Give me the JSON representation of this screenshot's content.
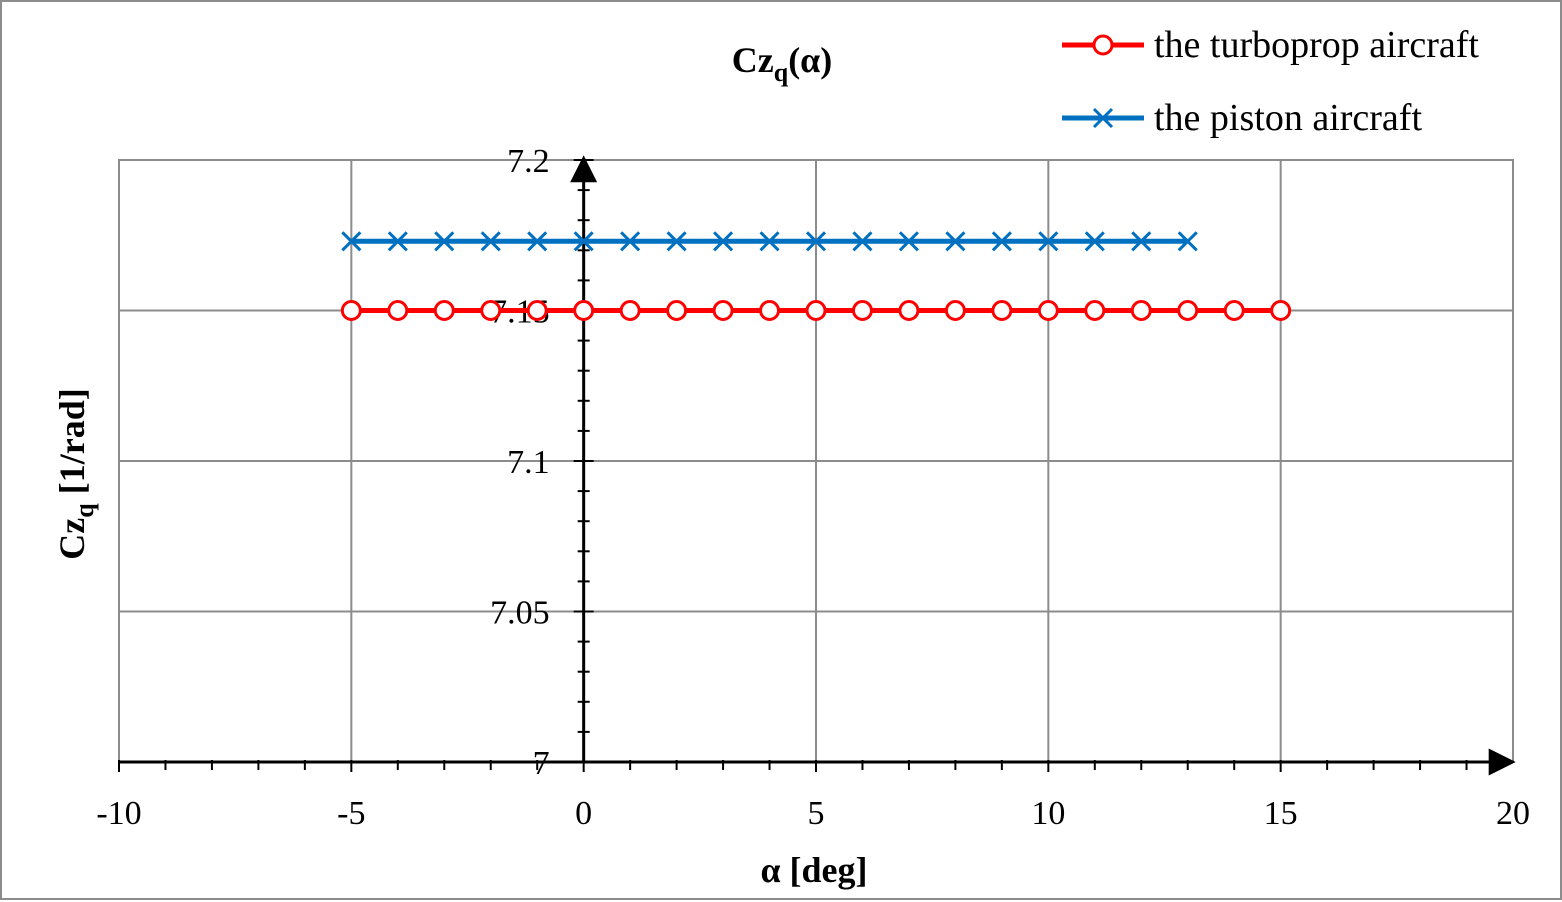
{
  "chart_data": {
    "type": "line",
    "title": {
      "main": "Cz",
      "sub": "q",
      "tail": "(α)"
    },
    "xlabel": "α [deg]",
    "ylabel": {
      "main": "Cz",
      "sub": "q",
      "tail": " [1/rad]"
    },
    "xlim": [
      -10,
      20
    ],
    "ylim": [
      7,
      7.2
    ],
    "xticks": [
      -10,
      -5,
      0,
      5,
      10,
      15,
      20
    ],
    "yticks": [
      7,
      7.05,
      7.1,
      7.15,
      7.2
    ],
    "xtick_labels": [
      "-10",
      "-5",
      "0",
      "5",
      "10",
      "15",
      "20"
    ],
    "ytick_labels": [
      "7",
      "7.05",
      "7.1",
      "7.15",
      "7.2"
    ],
    "grid": true,
    "legend_position": "top-right",
    "series": [
      {
        "name": "the turboprop aircraft",
        "color": "#ff0000",
        "marker": "circle",
        "x": [
          -5,
          -4,
          -3,
          -2,
          -1,
          0,
          1,
          2,
          3,
          4,
          5,
          6,
          7,
          8,
          9,
          10,
          11,
          12,
          13,
          14,
          15
        ],
        "y": [
          7.15,
          7.15,
          7.15,
          7.15,
          7.15,
          7.15,
          7.15,
          7.15,
          7.15,
          7.15,
          7.15,
          7.15,
          7.15,
          7.15,
          7.15,
          7.15,
          7.15,
          7.15,
          7.15,
          7.15,
          7.15
        ]
      },
      {
        "name": "the piston aircraft",
        "color": "#0070c0",
        "marker": "x",
        "x": [
          -5,
          -4,
          -3,
          -2,
          -1,
          0,
          1,
          2,
          3,
          4,
          5,
          6,
          7,
          8,
          9,
          10,
          11,
          12,
          13
        ],
        "y": [
          7.173,
          7.173,
          7.173,
          7.173,
          7.173,
          7.173,
          7.173,
          7.173,
          7.173,
          7.173,
          7.173,
          7.173,
          7.173,
          7.173,
          7.173,
          7.173,
          7.173,
          7.173,
          7.173
        ]
      }
    ]
  }
}
